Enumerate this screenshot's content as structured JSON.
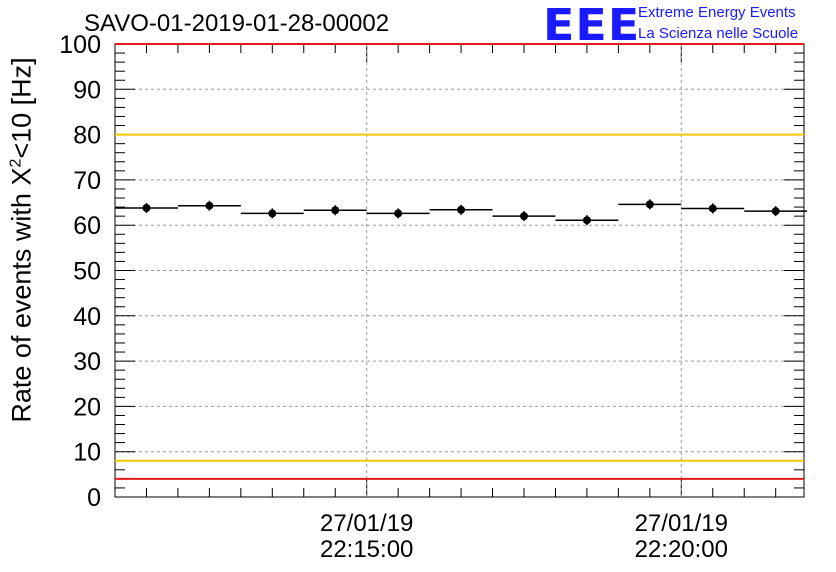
{
  "chart_data": {
    "type": "scatter",
    "title": "SAVO-01-2019-01-28-00002",
    "ylabel_prefix": "Rate of events with X",
    "ylabel_sup": "2",
    "ylabel_suffix": "<10 [Hz]",
    "ylim": [
      0,
      100
    ],
    "yticks": [
      "0",
      "10",
      "20",
      "30",
      "40",
      "50",
      "60",
      "70",
      "80",
      "90",
      "100"
    ],
    "xticks": [
      {
        "date": "27/01/19",
        "time": "22:15:00",
        "minute": 15
      },
      {
        "date": "27/01/19",
        "time": "22:20:00",
        "minute": 20
      }
    ],
    "xlim_minutes": [
      11.0,
      21.95
    ],
    "bin_width_minutes": 1.0,
    "series": [
      {
        "name": "rate",
        "x_minutes": [
          11.5,
          12.5,
          13.5,
          14.5,
          15.5,
          16.5,
          17.5,
          18.5,
          19.5,
          20.5,
          21.5
        ],
        "values": [
          63.8,
          64.3,
          62.6,
          63.3,
          62.6,
          63.4,
          62.0,
          61.1,
          64.6,
          63.7,
          63.1
        ]
      }
    ],
    "reference_lines": [
      {
        "value": 80,
        "color": "#f0c800"
      },
      {
        "value": 8,
        "color": "#f0c800"
      },
      {
        "value": 100,
        "color": "#e41a1a"
      },
      {
        "value": 4,
        "color": "#e41a1a"
      }
    ],
    "grid": true
  },
  "logo": {
    "text": "EEE",
    "line1": "Extreme Energy Events",
    "line2": "La Scienza nelle Scuole"
  }
}
